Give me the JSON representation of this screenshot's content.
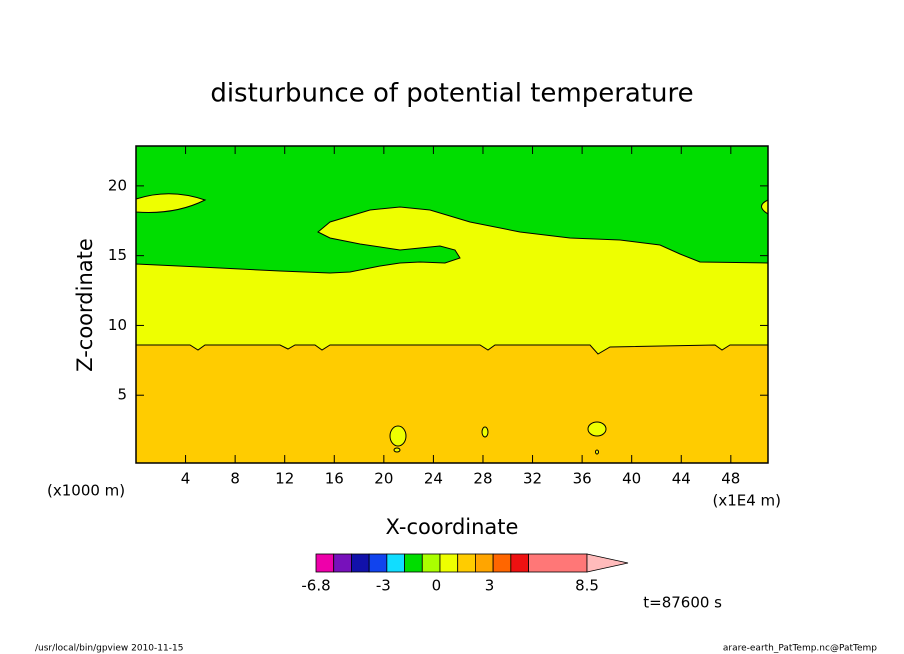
{
  "chart_data": {
    "type": "contour",
    "title": "disturbunce of potential temperature",
    "x_label": "X-coordinate",
    "y_label": "Z-coordinate",
    "x_unit_left": "(x1000 m)",
    "x_unit_right": "(x1E4 m)",
    "xlim": [
      0,
      51
    ],
    "xticks": [
      4,
      8,
      12,
      16,
      20,
      24,
      28,
      32,
      36,
      40,
      44,
      48
    ],
    "ylim": [
      0,
      23
    ],
    "yticks": [
      5,
      10,
      15,
      20
    ],
    "colorbar": {
      "ticks": [
        -6.8,
        -3,
        0,
        3,
        8.5
      ],
      "levels": [
        -6.8,
        -5.8,
        -4.8,
        -3.8,
        -2.8,
        -1.8,
        -0.8,
        0.2,
        1.2,
        2.2,
        3.2,
        4.2,
        5.2,
        8.5
      ],
      "colors": [
        "#ee00aa",
        "#7711bb",
        "#1111aa",
        "#1144ee",
        "#11ddff",
        "#00dd00",
        "#aaff00",
        "#eeff00",
        "#ffcc00",
        "#ffa500",
        "#ff6600",
        "#ee1111",
        "#ff7777"
      ],
      "over_color": "#ffbbbb"
    },
    "time_label": "t=87600 s",
    "footer_left": "/usr/local/bin/gpview   2010-11-15",
    "footer_right": "arare-earth_PatTemp.nc@PatTemp"
  }
}
